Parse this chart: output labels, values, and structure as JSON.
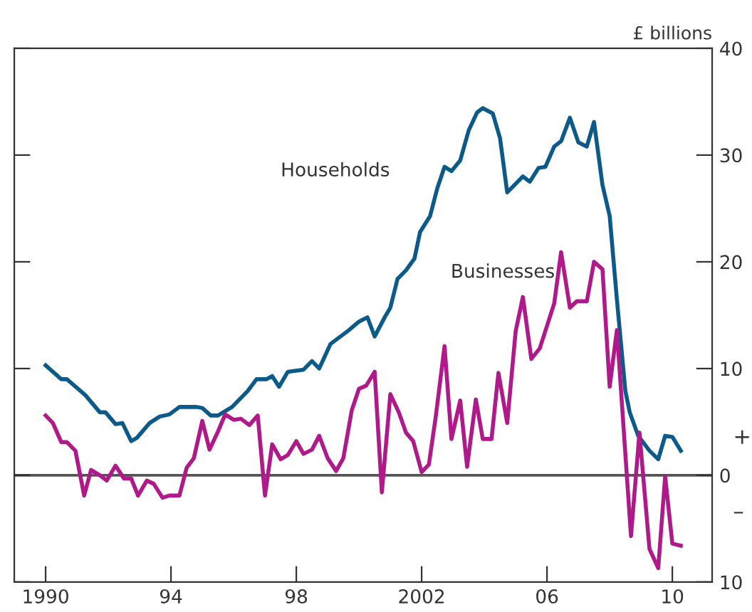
{
  "chart_data": {
    "type": "line",
    "ylabel": "£ billions",
    "xlim": [
      1989.0,
      2011.27
    ],
    "xticks": [
      1990,
      {
        "value": 1994,
        "label": "94"
      },
      {
        "value": 1998,
        "label": "98"
      },
      2002,
      {
        "value": 2006,
        "label": "06"
      },
      {
        "value": 2010,
        "label": "10"
      }
    ],
    "ylim": [
      -10,
      40
    ],
    "yticks": [
      {
        "value": -10,
        "label": "10"
      },
      0,
      10,
      20,
      30,
      40
    ],
    "annotations": [
      "+",
      "–"
    ],
    "ref_lines": [
      {
        "axis": "y",
        "value": 0,
        "color": "#555555"
      }
    ],
    "grid": false,
    "legend": false,
    "series": [
      {
        "name": "Households",
        "color": "#0b5a8a",
        "x": [
          1990.0,
          1990.5,
          1990.68,
          1991.27,
          1991.73,
          1991.91,
          1992.23,
          1992.45,
          1992.73,
          1992.91,
          1993.32,
          1993.64,
          1993.95,
          1994.27,
          1994.82,
          1995.0,
          1995.27,
          1995.5,
          1995.95,
          1996.45,
          1996.73,
          1997.05,
          1997.23,
          1997.45,
          1997.73,
          1998.23,
          1998.5,
          1998.73,
          1999.09,
          1999.68,
          2000.0,
          2000.27,
          2000.5,
          2000.82,
          2001.0,
          2001.23,
          2001.5,
          2001.77,
          2001.95,
          2002.27,
          2002.5,
          2002.73,
          2002.95,
          2003.23,
          2003.5,
          2003.77,
          2003.95,
          2004.27,
          2004.5,
          2004.73,
          2005.23,
          2005.45,
          2005.73,
          2005.95,
          2006.23,
          2006.45,
          2006.73,
          2007.0,
          2007.27,
          2007.5,
          2007.77,
          2008.0,
          2008.23,
          2008.5,
          2008.64,
          2008.91,
          2009.27,
          2009.55,
          2009.77,
          2010.0,
          2010.27
        ],
        "values": [
          10.3,
          9.0,
          9.0,
          7.5,
          5.9,
          5.9,
          4.8,
          4.9,
          3.2,
          3.5,
          4.9,
          5.5,
          5.7,
          6.4,
          6.4,
          6.3,
          5.6,
          5.6,
          6.4,
          7.9,
          9.0,
          9.0,
          9.3,
          8.3,
          9.7,
          9.9,
          10.7,
          10.0,
          12.3,
          13.6,
          14.4,
          14.8,
          13.0,
          14.8,
          15.7,
          18.4,
          19.2,
          20.3,
          22.8,
          24.3,
          26.9,
          28.9,
          28.5,
          29.5,
          32.3,
          34.0,
          34.4,
          33.9,
          31.6,
          26.5,
          28.0,
          27.5,
          28.8,
          28.9,
          30.8,
          31.3,
          33.5,
          31.2,
          30.8,
          33.1,
          27.2,
          24.3,
          16.5,
          7.9,
          5.9,
          3.7,
          2.3,
          1.5,
          3.7,
          3.6,
          2.3
        ]
      },
      {
        "name": "Businesses",
        "color": "#b0198a",
        "x": [
          1990.0,
          1990.23,
          1990.5,
          1990.68,
          1990.95,
          1991.23,
          1991.45,
          1991.73,
          1991.95,
          1992.23,
          1992.5,
          1992.73,
          1992.95,
          1993.23,
          1993.45,
          1993.73,
          1993.95,
          1994.27,
          1994.5,
          1994.73,
          1995.0,
          1995.23,
          1995.5,
          1995.73,
          1996.0,
          1996.23,
          1996.5,
          1996.77,
          1997.0,
          1997.23,
          1997.5,
          1997.73,
          1998.0,
          1998.23,
          1998.5,
          1998.73,
          1999.0,
          1999.27,
          1999.5,
          1999.77,
          2000.0,
          2000.23,
          2000.5,
          2000.73,
          2001.0,
          2001.27,
          2001.5,
          2001.73,
          2002.0,
          2002.23,
          2002.45,
          2002.73,
          2002.95,
          2003.23,
          2003.45,
          2003.73,
          2003.95,
          2004.23,
          2004.45,
          2004.73,
          2005.0,
          2005.23,
          2005.5,
          2005.77,
          2006.23,
          2006.45,
          2006.73,
          2006.95,
          2007.27,
          2007.5,
          2007.77,
          2008.0,
          2008.23,
          2008.68,
          2008.95,
          2009.27,
          2009.55,
          2009.77,
          2010.0,
          2010.27
        ],
        "values": [
          5.6,
          4.9,
          3.1,
          3.1,
          2.3,
          -1.9,
          0.5,
          0.0,
          -0.5,
          0.9,
          -0.3,
          -0.3,
          -1.9,
          -0.5,
          -0.8,
          -2.1,
          -1.9,
          -1.9,
          0.7,
          1.6,
          5.1,
          2.4,
          4.1,
          5.7,
          5.2,
          5.3,
          4.7,
          5.6,
          -1.9,
          2.9,
          1.5,
          1.9,
          3.2,
          2.0,
          2.4,
          3.7,
          1.6,
          0.4,
          1.6,
          6.1,
          8.1,
          8.4,
          9.7,
          -1.6,
          7.6,
          5.9,
          4.0,
          3.2,
          0.3,
          1.0,
          5.5,
          12.1,
          3.4,
          7.0,
          0.8,
          7.1,
          3.4,
          3.4,
          9.6,
          4.9,
          13.5,
          16.7,
          10.9,
          11.9,
          16.1,
          20.9,
          15.7,
          16.3,
          16.3,
          20.0,
          19.3,
          8.3,
          13.6,
          -5.7,
          4.0,
          -6.9,
          -8.7,
          -0.1,
          -6.4,
          -6.6
        ]
      }
    ]
  }
}
